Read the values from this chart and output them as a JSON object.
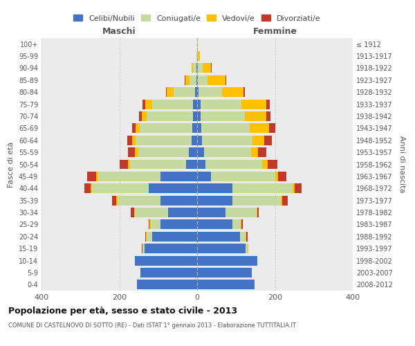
{
  "age_groups": [
    "0-4",
    "5-9",
    "10-14",
    "15-19",
    "20-24",
    "25-29",
    "30-34",
    "35-39",
    "40-44",
    "45-49",
    "50-54",
    "55-59",
    "60-64",
    "65-69",
    "70-74",
    "75-79",
    "80-84",
    "85-89",
    "90-94",
    "95-99",
    "100+"
  ],
  "birth_years": [
    "2008-2012",
    "2003-2007",
    "1998-2002",
    "1993-1997",
    "1988-1992",
    "1983-1987",
    "1978-1982",
    "1973-1977",
    "1968-1972",
    "1963-1967",
    "1958-1962",
    "1953-1957",
    "1948-1952",
    "1943-1947",
    "1938-1942",
    "1933-1937",
    "1928-1932",
    "1923-1927",
    "1918-1922",
    "1913-1917",
    "≤ 1912"
  ],
  "male": {
    "celibi": [
      155,
      145,
      160,
      135,
      115,
      95,
      75,
      95,
      125,
      95,
      28,
      22,
      14,
      13,
      10,
      10,
      5,
      2,
      2,
      0,
      0
    ],
    "coniugati": [
      0,
      0,
      0,
      5,
      15,
      25,
      85,
      110,
      145,
      160,
      145,
      130,
      145,
      135,
      120,
      105,
      55,
      18,
      8,
      1,
      0
    ],
    "vedovi": [
      0,
      0,
      0,
      1,
      2,
      2,
      2,
      3,
      4,
      5,
      5,
      8,
      8,
      10,
      12,
      18,
      18,
      10,
      5,
      1,
      0
    ],
    "divorziati": [
      0,
      0,
      0,
      1,
      2,
      3,
      8,
      10,
      15,
      22,
      22,
      18,
      12,
      10,
      8,
      8,
      2,
      2,
      0,
      0,
      0
    ]
  },
  "female": {
    "nubili": [
      148,
      140,
      155,
      125,
      110,
      90,
      72,
      90,
      90,
      35,
      22,
      18,
      12,
      10,
      8,
      8,
      4,
      2,
      2,
      0,
      0
    ],
    "coniugate": [
      0,
      0,
      0,
      5,
      15,
      22,
      80,
      125,
      155,
      165,
      145,
      120,
      130,
      125,
      115,
      105,
      60,
      25,
      12,
      2,
      0
    ],
    "vedove": [
      0,
      0,
      0,
      1,
      2,
      2,
      2,
      3,
      5,
      8,
      15,
      18,
      30,
      50,
      55,
      65,
      55,
      45,
      22,
      5,
      2
    ],
    "divorziate": [
      0,
      0,
      0,
      1,
      2,
      3,
      5,
      15,
      18,
      22,
      25,
      22,
      20,
      15,
      10,
      8,
      4,
      3,
      2,
      0,
      0
    ]
  },
  "colors": {
    "celibi": "#4472c4",
    "coniugati": "#c5d9a0",
    "vedovi": "#ffc000",
    "divorziati": "#c0392b"
  },
  "xlim": 400,
  "title": "Popolazione per età, sesso e stato civile - 2013",
  "subtitle": "COMUNE DI CASTELNOVO DI SOTTO (RE) - Dati ISTAT 1° gennaio 2013 - Elaborazione TUTTITALIA.IT",
  "ylabel_left": "Fasce di età",
  "ylabel_right": "Anni di nascita",
  "xlabel_maschi": "Maschi",
  "xlabel_femmine": "Femmine",
  "bg_color": "#ebebeb",
  "legend_labels": [
    "Celibi/Nubili",
    "Coniugati/e",
    "Vedovi/e",
    "Divorziati/e"
  ]
}
